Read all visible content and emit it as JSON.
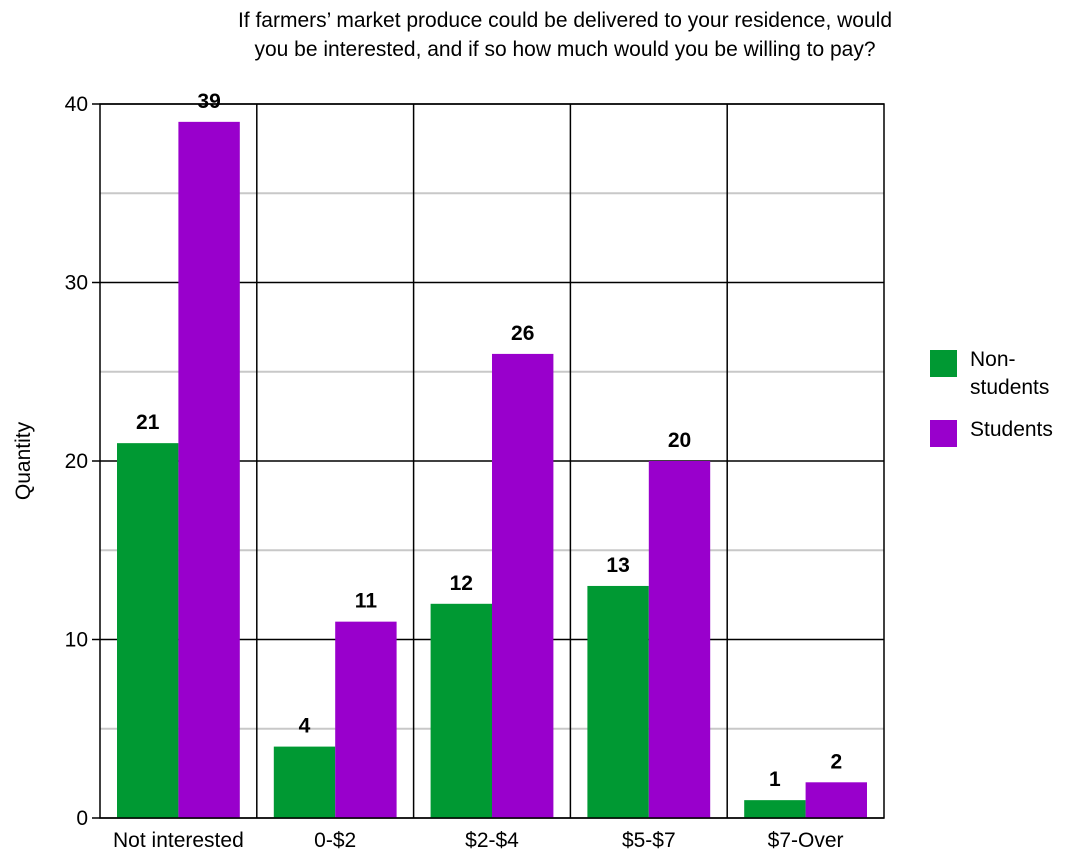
{
  "chart_data": {
    "type": "bar",
    "title_lines": [
      "If farmers’ market produce could be delivered to your residence, would",
      "you be interested, and if so how much would you be willing to pay?"
    ],
    "xlabel": "",
    "ylabel": "Quantity",
    "ylim": [
      0,
      40
    ],
    "yticks": [
      0,
      10,
      20,
      30,
      40
    ],
    "categories": [
      "Not interested",
      "0-$2",
      "$2-$4",
      "$5-$7",
      "$7-Over"
    ],
    "series": [
      {
        "name": "Non-students",
        "legend_lines": [
          "Non-",
          "students"
        ],
        "color": "#009933",
        "values": [
          21,
          4,
          12,
          13,
          1
        ]
      },
      {
        "name": "Students",
        "legend_lines": [
          "Students"
        ],
        "color": "#9900cc",
        "values": [
          39,
          11,
          26,
          20,
          2
        ]
      }
    ],
    "grid": true,
    "data_labels": true,
    "legend_position": "right"
  }
}
